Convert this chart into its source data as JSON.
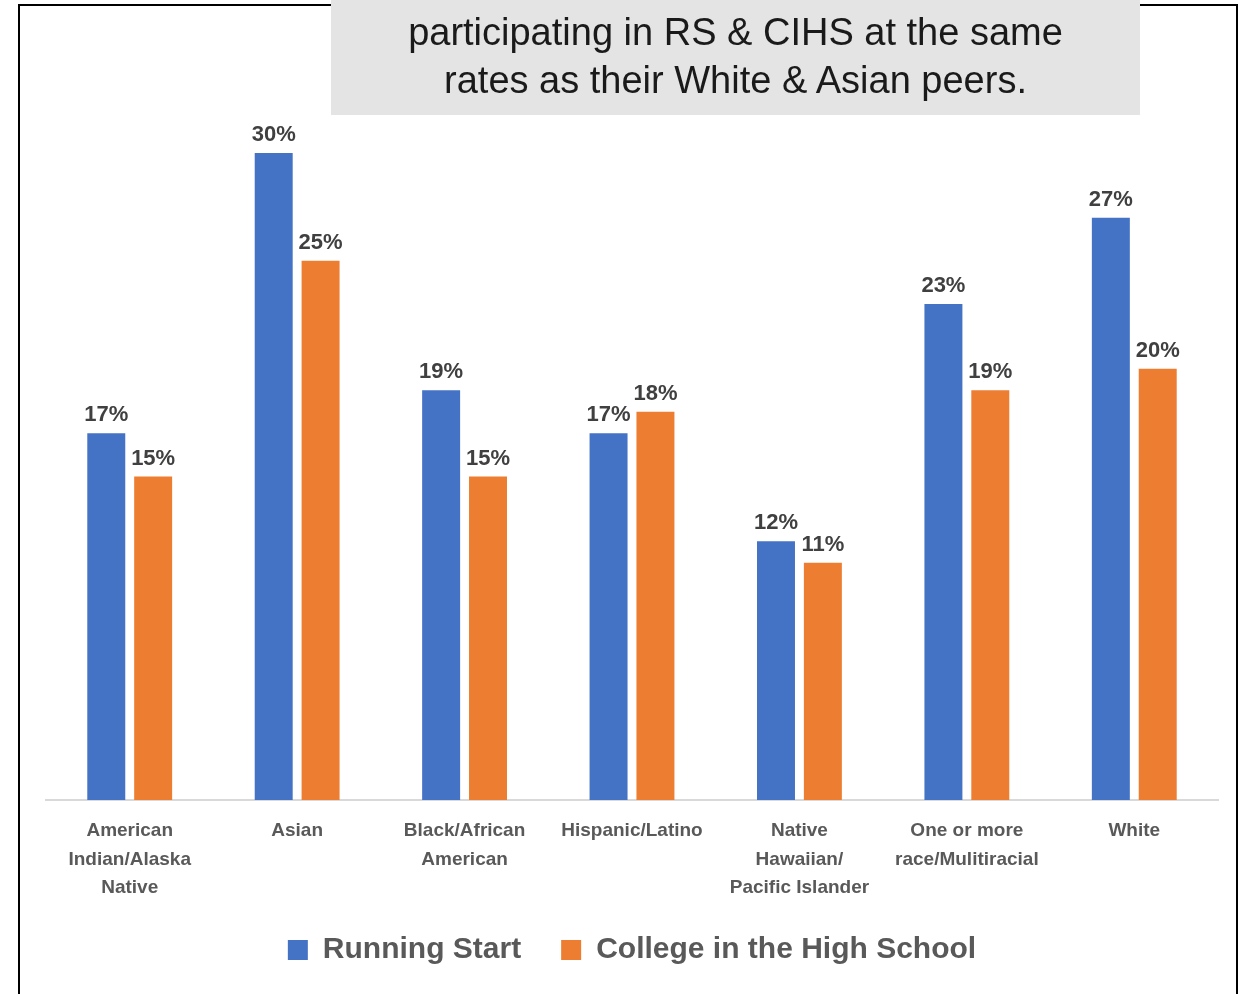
{
  "chart_data": {
    "type": "bar",
    "title": "participating in RS & CIHS at the same rates as their White & Asian peers.",
    "categories": [
      "American Indian/Alaska Native",
      "Asian",
      "Black/African American",
      "Hispanic/Latino",
      "Native Hawaiian/ Pacific Islander",
      "One or more race/Mulitiracial",
      "White"
    ],
    "series": [
      {
        "name": "Running Start",
        "color": "#4472c4",
        "values": [
          17,
          30,
          19,
          17,
          12,
          23,
          27
        ],
        "value_labels": [
          "17%",
          "30%",
          "19%",
          "17%",
          "12%",
          "23%",
          "27%"
        ]
      },
      {
        "name": "College in the High School",
        "color": "#ed7d31",
        "values": [
          15,
          25,
          15,
          18,
          11,
          19,
          20
        ],
        "value_labels": [
          "15%",
          "25%",
          "15%",
          "18%",
          "11%",
          "19%",
          "20%"
        ]
      }
    ],
    "ylim": [
      0,
      30
    ],
    "tick_labels": "x",
    "legend": "bottom"
  }
}
